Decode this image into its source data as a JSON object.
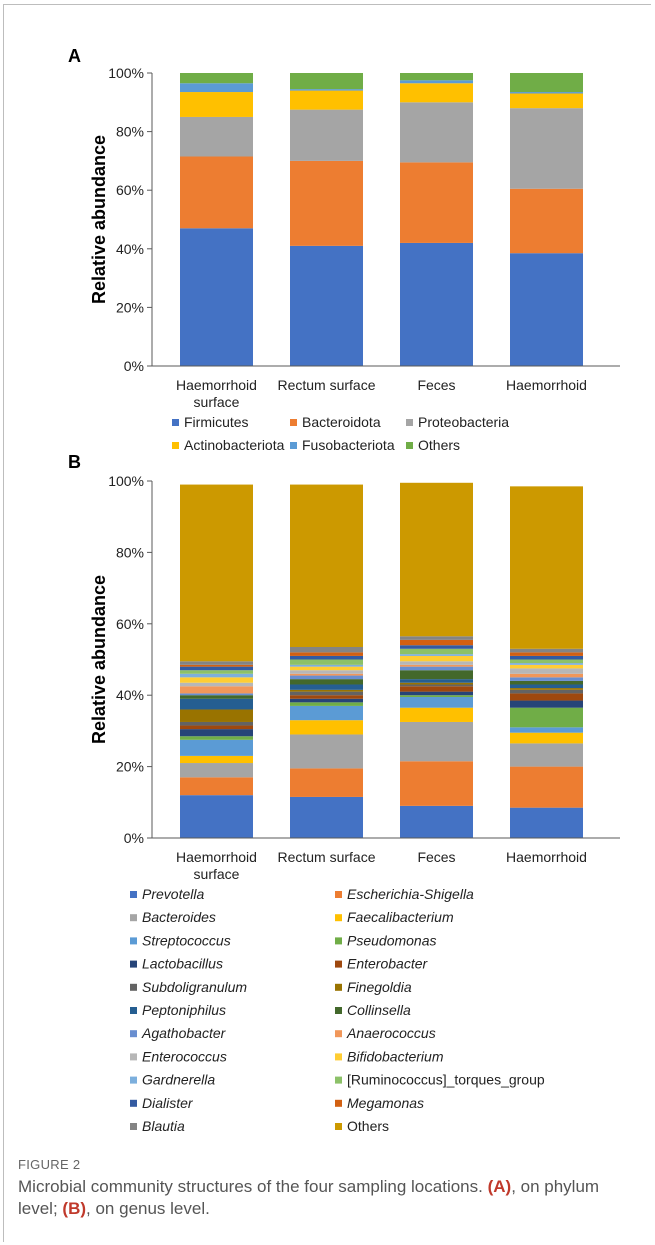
{
  "figure_label": "FIGURE 2",
  "caption": {
    "main": "Microbial community structures of the four sampling locations. ",
    "a_tag": "(A)",
    "a_text": ", on phylum level; ",
    "b_tag": "(B)",
    "b_text": ", on genus level."
  },
  "chart_data": [
    {
      "panel": "A",
      "type": "bar",
      "stacked": true,
      "ylabel": "Relative abundance",
      "ylim": [
        0,
        100
      ],
      "yticks": [
        "0%",
        "20%",
        "40%",
        "60%",
        "80%",
        "100%"
      ],
      "categories": [
        "Haemorrhoid surface",
        "Rectum surface",
        "Feces",
        "Haemorrhoid"
      ],
      "category_lines": [
        [
          "Haemorrhoid",
          "surface"
        ],
        [
          "Rectum surface"
        ],
        [
          "Feces"
        ],
        [
          "Haemorrhoid"
        ]
      ],
      "series": [
        {
          "name": "Firmicutes",
          "color": "#4472c4",
          "values": [
            47.0,
            41.0,
            42.0,
            38.5
          ]
        },
        {
          "name": "Bacteroidota",
          "color": "#ed7d31",
          "values": [
            24.5,
            29.0,
            27.5,
            22.0
          ]
        },
        {
          "name": "Proteobacteria",
          "color": "#a5a5a5",
          "values": [
            13.5,
            17.5,
            20.5,
            27.5
          ]
        },
        {
          "name": "Actinobacteriota",
          "color": "#ffc000",
          "values": [
            8.5,
            6.5,
            6.5,
            5.0
          ]
        },
        {
          "name": "Fusobacteriota",
          "color": "#5b9bd5",
          "values": [
            3.0,
            0.5,
            1.0,
            0.5
          ]
        },
        {
          "name": "Others",
          "color": "#70ad47",
          "values": [
            3.5,
            5.5,
            2.5,
            6.5
          ]
        }
      ],
      "legend": "bottom"
    },
    {
      "panel": "B",
      "type": "bar",
      "stacked": true,
      "ylabel": "Relative abundance",
      "ylim": [
        0,
        100
      ],
      "yticks": [
        "0%",
        "20%",
        "40%",
        "60%",
        "80%",
        "100%"
      ],
      "categories": [
        "Haemorrhoid surface",
        "Rectum surface",
        "Feces",
        "Haemorrhoid"
      ],
      "category_lines": [
        [
          "Haemorrhoid",
          "surface"
        ],
        [
          "Rectum surface"
        ],
        [
          "Feces"
        ],
        [
          "Haemorrhoid"
        ]
      ],
      "series": [
        {
          "name": "Prevotella",
          "italic": true,
          "color": "#4472c4",
          "values": [
            12.0,
            11.5,
            9.0,
            8.5
          ]
        },
        {
          "name": "Escherichia-Shigella",
          "italic": true,
          "color": "#ed7d31",
          "values": [
            5.0,
            8.0,
            12.5,
            11.5
          ]
        },
        {
          "name": "Bacteroides",
          "italic": true,
          "color": "#a5a5a5",
          "values": [
            4.0,
            9.5,
            11.0,
            6.5
          ]
        },
        {
          "name": "Faecalibacterium",
          "italic": true,
          "color": "#ffc000",
          "values": [
            2.0,
            4.0,
            4.0,
            3.0
          ]
        },
        {
          "name": "Streptococcus",
          "italic": true,
          "color": "#5b9bd5",
          "values": [
            4.5,
            4.0,
            3.0,
            1.5
          ]
        },
        {
          "name": "Pseudomonas",
          "italic": true,
          "color": "#70ad47",
          "values": [
            1.0,
            1.0,
            0.5,
            5.5
          ]
        },
        {
          "name": "Lactobacillus",
          "italic": true,
          "color": "#264478",
          "values": [
            2.0,
            1.0,
            1.0,
            2.0
          ]
        },
        {
          "name": "Enterobacter",
          "italic": true,
          "color": "#9e480e",
          "values": [
            1.0,
            1.0,
            1.5,
            2.0
          ]
        },
        {
          "name": "Subdoligranulum",
          "italic": true,
          "color": "#636363",
          "values": [
            1.0,
            1.0,
            0.5,
            1.0
          ]
        },
        {
          "name": "Finegoldia",
          "italic": true,
          "color": "#997300",
          "values": [
            3.5,
            0.5,
            0.5,
            0.5
          ]
        },
        {
          "name": "Peptoniphilus",
          "italic": true,
          "color": "#255e91",
          "values": [
            3.0,
            1.5,
            1.0,
            1.0
          ]
        },
        {
          "name": "Collinsella",
          "italic": true,
          "color": "#43682b",
          "values": [
            1.0,
            1.5,
            2.5,
            1.0
          ]
        },
        {
          "name": "Agathobacter",
          "italic": true,
          "color": "#698ed0",
          "values": [
            0.5,
            1.0,
            1.0,
            1.0
          ]
        },
        {
          "name": "Anaerococcus",
          "italic": true,
          "color": "#f1975a",
          "values": [
            2.0,
            0.5,
            0.5,
            1.0
          ]
        },
        {
          "name": "Enterococcus",
          "italic": true,
          "color": "#b7b7b7",
          "values": [
            1.0,
            1.0,
            1.0,
            1.5
          ]
        },
        {
          "name": "Bifidobacterium",
          "italic": true,
          "color": "#ffcd33",
          "values": [
            1.5,
            1.0,
            1.5,
            1.0
          ]
        },
        {
          "name": "Gardnerella",
          "italic": true,
          "color": "#7cafdd",
          "values": [
            1.0,
            0.5,
            0.5,
            0.5
          ]
        },
        {
          "name": "[Ruminococcus]_torques_group",
          "italic": false,
          "color": "#8cc168",
          "values": [
            1.0,
            1.5,
            1.5,
            1.0
          ]
        },
        {
          "name": "Dialister",
          "italic": true,
          "color": "#335aa1",
          "values": [
            1.0,
            1.0,
            1.0,
            1.0
          ]
        },
        {
          "name": "Megamonas",
          "italic": true,
          "color": "#d26012",
          "values": [
            0.5,
            1.0,
            1.5,
            1.0
          ]
        },
        {
          "name": "Blautia",
          "italic": true,
          "color": "#848484",
          "values": [
            1.0,
            1.5,
            1.0,
            1.0
          ]
        },
        {
          "name": "Others",
          "italic": false,
          "color": "#cc9900",
          "values": [
            49.5,
            45.5,
            43.0,
            45.5
          ]
        }
      ],
      "legend": "bottom"
    }
  ]
}
